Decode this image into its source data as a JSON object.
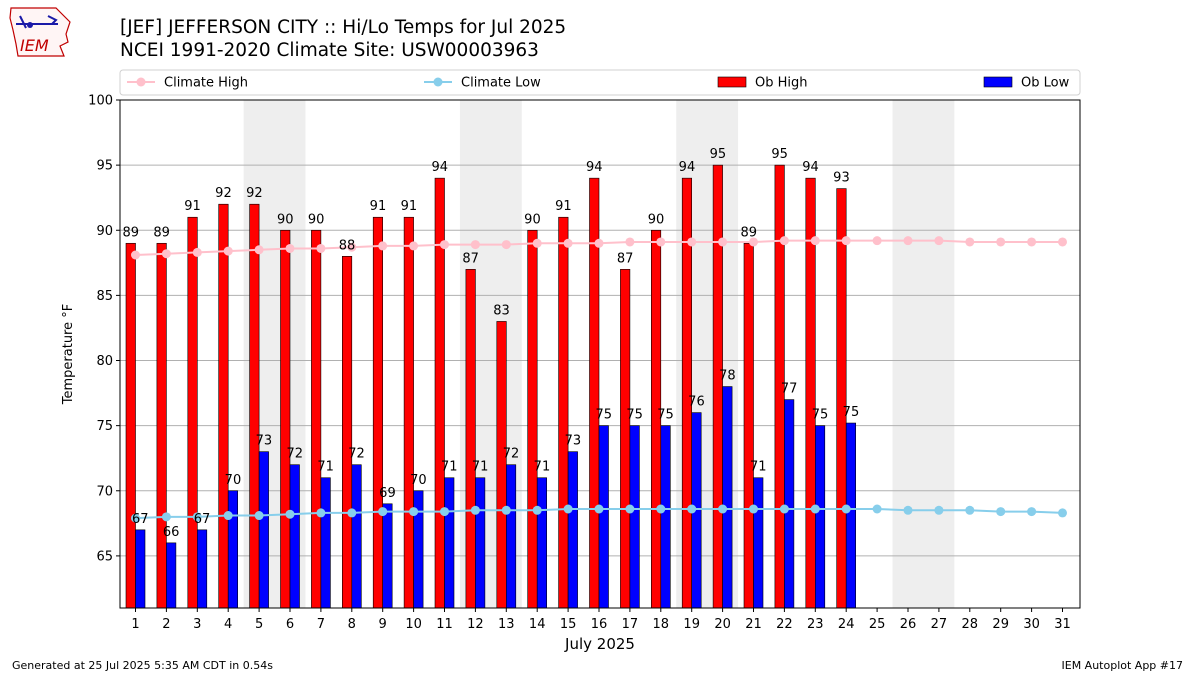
{
  "title_line1": "[JEF] JEFFERSON CITY :: Hi/Lo Temps for Jul 2025",
  "title_line2": "NCEI 1991-2020 Climate Site: USW00003963",
  "logo_text": "IEM",
  "footer_left": "Generated at 25 Jul 2025 5:35 AM CDT in 0.54s",
  "footer_right": "IEM Autoplot App #17",
  "colors": {
    "ob_high": "#ff0000",
    "ob_low": "#0000ff",
    "climate_high": "#ffc0cb",
    "climate_low": "#87ceeb",
    "weekend_shade": "#eeeeee",
    "grid": "#b0b0b0"
  },
  "chart_data": {
    "type": "bar",
    "xlabel": "July 2025",
    "ylabel": "Temperature °F",
    "ylim": [
      61,
      100
    ],
    "yticks": [
      65,
      70,
      75,
      80,
      85,
      90,
      95,
      100
    ],
    "grid": "horizontal",
    "legend_placement": "top",
    "days": [
      1,
      2,
      3,
      4,
      5,
      6,
      7,
      8,
      9,
      10,
      11,
      12,
      13,
      14,
      15,
      16,
      17,
      18,
      19,
      20,
      21,
      22,
      23,
      24,
      25,
      26,
      27,
      28,
      29,
      30,
      31
    ],
    "weekend_spans": [
      [
        5,
        6
      ],
      [
        12,
        13
      ],
      [
        19,
        20
      ],
      [
        26,
        27
      ]
    ],
    "series": [
      {
        "name": "Ob High",
        "kind": "bar",
        "label_values": true,
        "values": [
          89,
          89,
          91,
          92,
          92,
          90,
          90,
          88,
          91,
          91,
          94,
          87,
          83,
          90,
          91,
          94,
          87,
          90,
          94,
          95,
          89,
          95,
          94,
          93.2
        ]
      },
      {
        "name": "Ob Low",
        "kind": "bar",
        "label_values": true,
        "values": [
          67,
          66,
          67,
          70,
          73,
          72,
          71,
          72,
          69,
          70,
          71,
          71,
          72,
          71,
          73,
          75,
          75,
          75,
          76,
          78,
          71,
          77,
          75,
          75.2
        ]
      },
      {
        "name": "Climate High",
        "kind": "line",
        "values": [
          88.1,
          88.2,
          88.3,
          88.4,
          88.5,
          88.6,
          88.6,
          88.7,
          88.8,
          88.8,
          88.9,
          88.9,
          88.9,
          89.0,
          89.0,
          89.0,
          89.1,
          89.1,
          89.1,
          89.1,
          89.1,
          89.2,
          89.2,
          89.2,
          89.2,
          89.2,
          89.2,
          89.1,
          89.1,
          89.1,
          89.1
        ]
      },
      {
        "name": "Climate Low",
        "kind": "line",
        "values": [
          67.9,
          68.0,
          68.0,
          68.1,
          68.1,
          68.2,
          68.3,
          68.3,
          68.4,
          68.4,
          68.4,
          68.5,
          68.5,
          68.5,
          68.6,
          68.6,
          68.6,
          68.6,
          68.6,
          68.6,
          68.6,
          68.6,
          68.6,
          68.6,
          68.6,
          68.5,
          68.5,
          68.5,
          68.4,
          68.4,
          68.3
        ]
      }
    ]
  }
}
